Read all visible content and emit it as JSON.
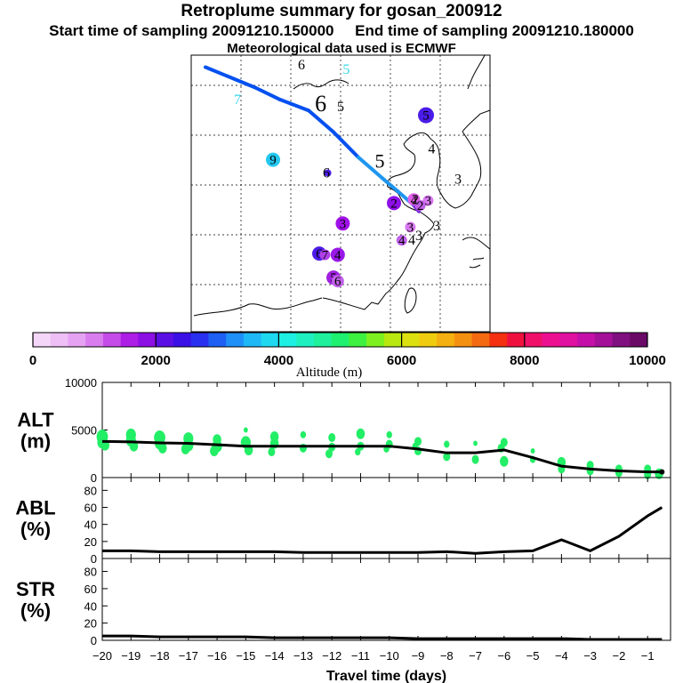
{
  "header": {
    "title": "Retroplume summary for gosan_200912",
    "start_label": "Start time of sampling 20091210.150000",
    "end_label": "End time of sampling 20091210.180000",
    "met_label": "Meteorological data used is ECMWF"
  },
  "colors": {
    "path_light": "#1e96f0",
    "path_dark": "#0050f0",
    "path_end": "#7a2cd8",
    "scatter": "#22ee66",
    "line": "#000000"
  },
  "map": {
    "labels": [
      {
        "text": "7",
        "lon": 95.5,
        "lat": 47.3,
        "color": "#35d8e8"
      },
      {
        "text": "6",
        "lon": 104.5,
        "lat": 50.2,
        "color": "#000000"
      },
      {
        "text": "5",
        "lon": 110.8,
        "lat": 49.8,
        "color": "#35d8e8"
      },
      {
        "text": "6",
        "lon": 107.2,
        "lat": 46.7,
        "color": "#000000",
        "size": 26
      },
      {
        "text": "5",
        "lon": 110.0,
        "lat": 46.7,
        "color": "#000000"
      },
      {
        "text": "4",
        "lon": 122.8,
        "lat": 43.2,
        "color": "#000000"
      },
      {
        "text": "5",
        "lon": 115.5,
        "lat": 42.0,
        "color": "#000000",
        "size": 22
      },
      {
        "text": "6",
        "lon": 108.0,
        "lat": 41.2,
        "color": "#000000"
      },
      {
        "text": "3",
        "lon": 126.5,
        "lat": 40.7,
        "color": "#000000"
      },
      {
        "text": "3",
        "lon": 121.0,
        "lat": 36.0,
        "color": "#000000"
      },
      {
        "text": "3",
        "lon": 123.5,
        "lat": 36.8,
        "color": "#000000"
      },
      {
        "text": "4",
        "lon": 120.0,
        "lat": 35.6,
        "color": "#000000"
      },
      {
        "text": "2",
        "lon": 120.5,
        "lat": 39.0,
        "color": "#000000"
      }
    ],
    "dots": [
      {
        "lon": 122.0,
        "lat": 46.0,
        "r": 9,
        "color": "#4b1ce8",
        "label": "5"
      },
      {
        "lon": 100.5,
        "lat": 42.3,
        "r": 8,
        "color": "#22c8f0",
        "label": "9"
      },
      {
        "lon": 108.2,
        "lat": 41.2,
        "r": 4,
        "color": "#4b1ce8",
        "label": ""
      },
      {
        "lon": 117.5,
        "lat": 38.7,
        "r": 8,
        "color": "#8e10e8",
        "label": "2"
      },
      {
        "lon": 120.3,
        "lat": 39.0,
        "r": 7,
        "color": "#e060e8",
        "label": "4"
      },
      {
        "lon": 122.3,
        "lat": 38.9,
        "r": 6,
        "color": "#d878f0",
        "label": "3"
      },
      {
        "lon": 121.2,
        "lat": 38.5,
        "r": 6,
        "color": "#c060e8",
        "label": "2"
      },
      {
        "lon": 110.3,
        "lat": 37.0,
        "r": 8,
        "color": "#a010e8",
        "label": "3"
      },
      {
        "lon": 119.8,
        "lat": 36.7,
        "r": 6,
        "color": "#d878f0",
        "label": "3"
      },
      {
        "lon": 118.6,
        "lat": 35.6,
        "r": 6,
        "color": "#c060e8",
        "label": "4"
      },
      {
        "lon": 107.0,
        "lat": 34.5,
        "r": 8,
        "color": "#4b1ce8",
        "label": "6"
      },
      {
        "lon": 107.8,
        "lat": 34.4,
        "r": 6,
        "color": "#b040e8",
        "label": "7"
      },
      {
        "lon": 109.6,
        "lat": 34.4,
        "r": 8,
        "color": "#9a18e8",
        "label": "4"
      },
      {
        "lon": 109.0,
        "lat": 32.5,
        "r": 8,
        "color": "#a020e0",
        "label": "5"
      },
      {
        "lon": 109.6,
        "lat": 32.2,
        "r": 7,
        "color": "#c060e8",
        "label": "6"
      }
    ],
    "path": [
      {
        "lon": 91.0,
        "lat": 50.0
      },
      {
        "lon": 98.0,
        "lat": 48.3
      },
      {
        "lon": 101.5,
        "lat": 47.3
      },
      {
        "lon": 105.5,
        "lat": 46.4
      },
      {
        "lon": 109.0,
        "lat": 44.6
      },
      {
        "lon": 112.5,
        "lat": 42.5
      },
      {
        "lon": 115.8,
        "lat": 40.8
      },
      {
        "lon": 118.0,
        "lat": 39.7
      },
      {
        "lon": 120.3,
        "lat": 38.5
      },
      {
        "lon": 121.0,
        "lat": 38.0
      }
    ]
  },
  "colorbar": {
    "ticks": [
      "0",
      "2000",
      "4000",
      "6000",
      "8000",
      "10000"
    ],
    "label": "Altitude (m)",
    "colors": [
      "#f4d6f8",
      "#eebef6",
      "#e6a2f2",
      "#d87cee",
      "#c54ce8",
      "#ad1ee6",
      "#8c10e4",
      "#5a10e4",
      "#3a10e6",
      "#2a30f0",
      "#1e60f4",
      "#1e90f8",
      "#1eb8f6",
      "#1ed8f0",
      "#1ef0e2",
      "#1ef0c0",
      "#1ef09c",
      "#1ef070",
      "#3ef040",
      "#7ef020",
      "#b8e810",
      "#dce010",
      "#f0cc10",
      "#f4b010",
      "#f49010",
      "#f46a10",
      "#f43010",
      "#f01040",
      "#f0106a",
      "#ec1090",
      "#e010a0",
      "#c410a8",
      "#a41098",
      "#801080",
      "#6a0a66"
    ]
  },
  "chart_data": [
    {
      "type": "scatter",
      "panel": "ALT",
      "ylabel": "ALT\n(m)",
      "ylabel_line1": "ALT",
      "ylabel_line2": "(m)",
      "ylim": [
        0,
        10000
      ],
      "yticks": [
        "0",
        "5000",
        "10000"
      ],
      "xlim": [
        -20,
        -0.2
      ],
      "line": {
        "x": [
          -20,
          -19,
          -18,
          -17,
          -16,
          -15,
          -14,
          -13,
          -12,
          -11,
          -10,
          -9,
          -8,
          -7,
          -6,
          -5,
          -4,
          -3,
          -2,
          -1,
          -0.5
        ],
        "y": [
          3800,
          3750,
          3650,
          3600,
          3450,
          3300,
          3300,
          3300,
          3300,
          3300,
          3300,
          3000,
          2600,
          2600,
          2900,
          2100,
          1200,
          900,
          700,
          600,
          600
        ]
      },
      "scatter": {
        "x": [
          -20,
          -20,
          -19.9,
          -19,
          -19,
          -18.9,
          -18,
          -18,
          -17.9,
          -17,
          -17,
          -17.1,
          -16,
          -16,
          -16.1,
          -15,
          -15,
          -14.9,
          -14,
          -14,
          -14.1,
          -13,
          -13,
          -12,
          -12,
          -12.1,
          -11,
          -11,
          -11.1,
          -10,
          -10,
          -10.1,
          -9,
          -9,
          -9.1,
          -8,
          -8,
          -7,
          -7,
          -6,
          -6,
          -6.1,
          -5,
          -5,
          -4,
          -4,
          -3,
          -3,
          -2,
          -2,
          -1,
          -1,
          -0.6
        ],
        "y": [
          4300,
          3700,
          3400,
          4500,
          3900,
          3300,
          4200,
          3600,
          3100,
          4100,
          3400,
          3000,
          4000,
          3300,
          2800,
          5000,
          3700,
          2900,
          4300,
          3600,
          2700,
          4500,
          3100,
          4200,
          3200,
          2500,
          4600,
          3300,
          2700,
          4500,
          3500,
          3000,
          3800,
          2800,
          3300,
          3500,
          2200,
          3600,
          1900,
          3700,
          1700,
          3100,
          2800,
          1900,
          1600,
          900,
          1300,
          700,
          900,
          500,
          900,
          300,
          400
        ],
        "s": [
          8,
          7,
          6,
          7,
          7,
          6,
          8,
          7,
          6,
          7,
          7,
          6,
          6,
          7,
          6,
          3,
          7,
          6,
          6,
          6,
          5,
          4,
          5,
          5,
          5,
          5,
          6,
          5,
          4,
          4,
          5,
          4,
          5,
          5,
          4,
          4,
          5,
          3,
          5,
          5,
          6,
          5,
          3,
          4,
          6,
          5,
          5,
          5,
          5,
          5,
          5,
          5,
          6
        ]
      }
    },
    {
      "type": "line",
      "panel": "ABL",
      "ylabel": "ABL\n(%)",
      "ylabel_line1": "ABL",
      "ylabel_line2": "(%)",
      "ylim": [
        0,
        95
      ],
      "yticks": [
        "0",
        "20",
        "40",
        "60",
        "80"
      ],
      "xlim": [
        -20,
        -0.2
      ],
      "x": [
        -20,
        -19,
        -18,
        -17,
        -16,
        -15,
        -14,
        -13,
        -12,
        -11,
        -10,
        -9,
        -8,
        -7,
        -6,
        -5,
        -4,
        -3,
        -2,
        -1,
        -0.5
      ],
      "y": [
        9,
        9,
        8,
        8,
        8,
        8,
        8,
        7,
        7,
        7,
        7,
        7,
        8,
        6,
        8,
        9,
        22,
        9,
        26,
        50,
        60
      ]
    },
    {
      "type": "line",
      "panel": "STR",
      "ylabel": "STR\n(%)",
      "ylabel_line1": "STR",
      "ylabel_line2": "(%)",
      "ylim": [
        0,
        95
      ],
      "yticks": [
        "0",
        "20",
        "40",
        "60",
        "80"
      ],
      "xlim": [
        -20,
        -0.2
      ],
      "x": [
        -20,
        -19,
        -18,
        -17,
        -16,
        -15,
        -14,
        -13,
        -12,
        -11,
        -10,
        -9,
        -8,
        -7,
        -6,
        -5,
        -4,
        -3,
        -2,
        -1,
        -0.5
      ],
      "y": [
        5,
        5,
        4,
        4,
        4,
        4,
        3,
        3,
        3,
        3,
        3,
        2,
        2,
        2,
        2,
        2,
        2,
        1,
        1,
        1,
        1
      ],
      "xticks": [
        "−20",
        "−19",
        "−18",
        "−17",
        "−16",
        "−15",
        "−14",
        "−13",
        "−12",
        "−11",
        "−10",
        "−9",
        "−8",
        "−7",
        "−6",
        "−5",
        "−4",
        "−3",
        "−2",
        "−1"
      ],
      "xlabel": "Travel time (days)"
    }
  ]
}
